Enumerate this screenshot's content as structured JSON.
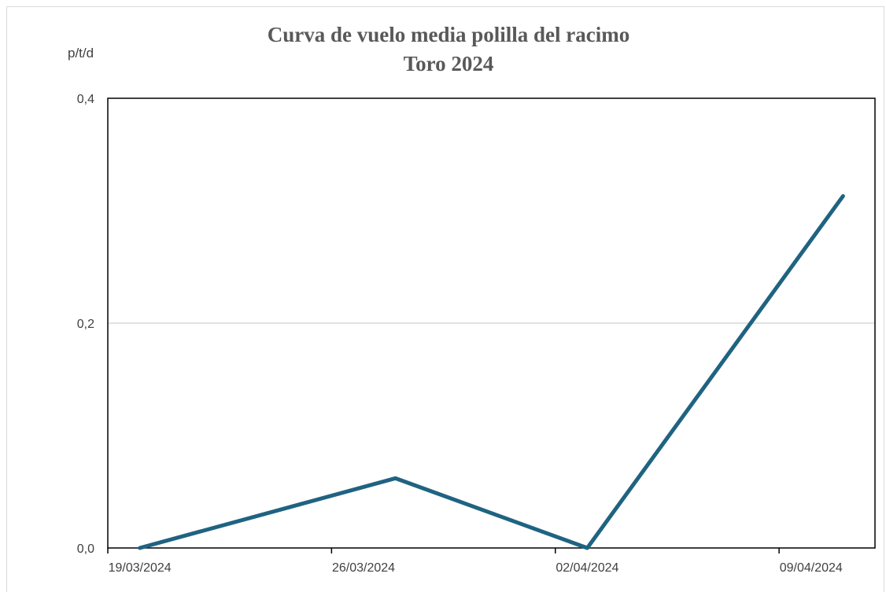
{
  "chart_data": {
    "type": "line",
    "title_lines": [
      "Curva de vuelo media polilla del racimo",
      "Toro  2024"
    ],
    "ylabel": "p/t/d",
    "xlabel": "",
    "x_tick_labels": [
      "19/03/2024",
      "26/03/2024",
      "02/04/2024",
      "09/04/2024"
    ],
    "y_tick_labels": [
      "0,0",
      "0,2",
      "0,4"
    ],
    "ylim": [
      0,
      0.4
    ],
    "y_ticks": [
      0,
      0.2,
      0.4
    ],
    "x_range": [
      "2024-03-18",
      "2024-04-11"
    ],
    "grid": "horizontal",
    "series": [
      {
        "color": "#1f6381",
        "points": [
          {
            "x": "2024-03-19",
            "y": 0.0
          },
          {
            "x": "2024-03-27",
            "y": 0.062
          },
          {
            "x": "2024-04-02",
            "y": 0.0
          },
          {
            "x": "2024-04-10",
            "y": 0.313
          }
        ]
      }
    ]
  }
}
